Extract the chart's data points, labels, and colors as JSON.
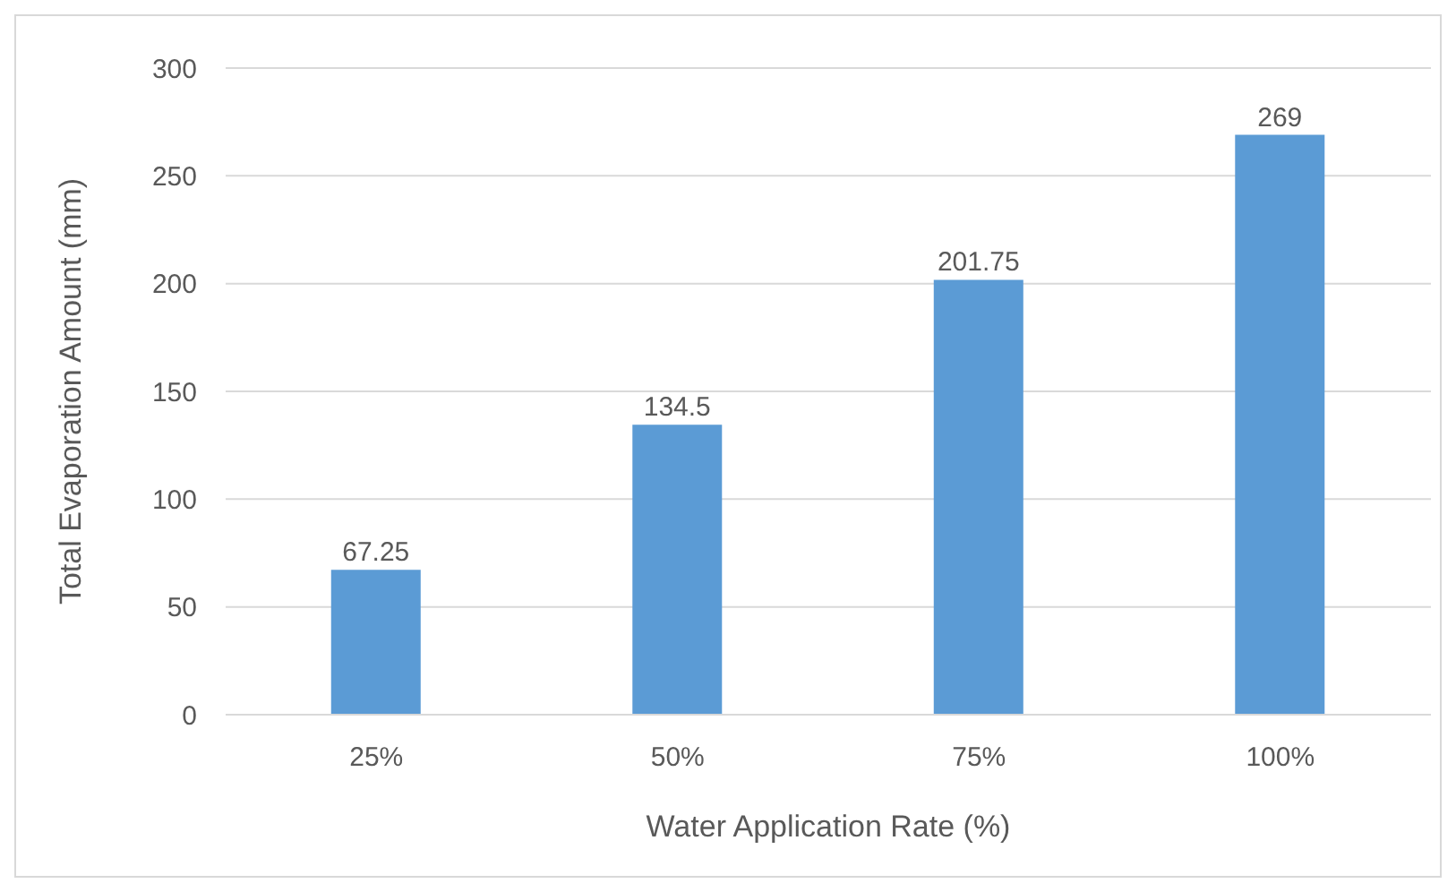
{
  "chart_data": {
    "type": "bar",
    "xlabel": "Water Application Rate (%)",
    "ylabel": "Total Evaporation Amount (mm)",
    "categories": [
      "25%",
      "50%",
      "75%",
      "100%"
    ],
    "values": [
      67.25,
      134.5,
      201.75,
      269
    ],
    "color": "#5b9bd5",
    "ylim": [
      0,
      300
    ],
    "yticks": [
      0,
      50,
      100,
      150,
      200,
      250,
      300
    ],
    "grid": "y",
    "legend": false,
    "data_labels": true
  }
}
